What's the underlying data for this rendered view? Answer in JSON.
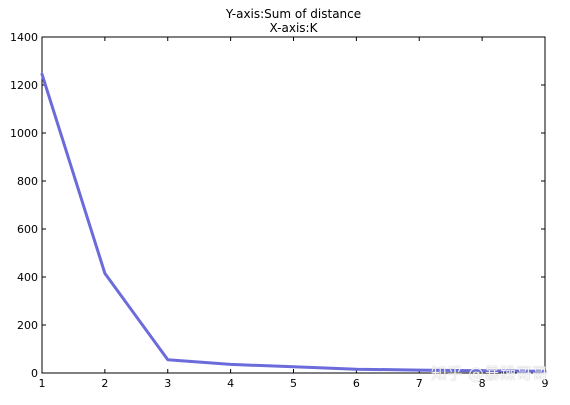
{
  "chart_data": {
    "type": "line",
    "title": [
      "Y-axis:Sum of distance",
      "X-axis:K"
    ],
    "xlabel": "",
    "ylabel": "",
    "xlim": [
      1,
      9
    ],
    "ylim": [
      0,
      1400
    ],
    "xticks": [
      1,
      2,
      3,
      4,
      5,
      6,
      7,
      8,
      9
    ],
    "yticks": [
      0,
      200,
      400,
      600,
      800,
      1000,
      1200,
      1400
    ],
    "grid": false,
    "legend": "none",
    "series": [
      {
        "x": [
          1,
          2,
          3,
          4,
          5,
          6,
          7,
          8,
          9
        ],
        "values": [
          1245,
          415,
          55,
          36,
          26,
          16,
          12,
          9,
          7
        ],
        "color": "#6b6bdb"
      }
    ]
  },
  "watermark": "知乎 @暴躁哥哥"
}
